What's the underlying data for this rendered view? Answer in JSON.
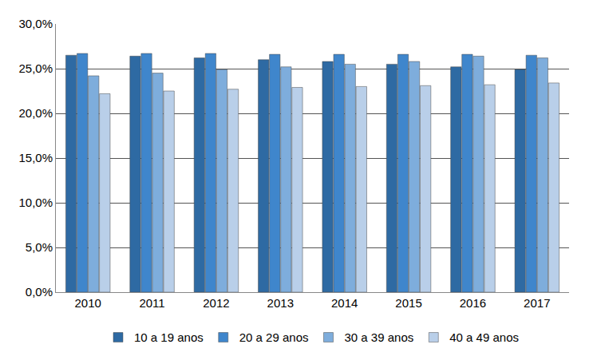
{
  "chart_data": {
    "type": "bar",
    "categories": [
      "2010",
      "2011",
      "2012",
      "2013",
      "2014",
      "2015",
      "2016",
      "2017"
    ],
    "series": [
      {
        "name": "10 a 19 anos",
        "color": "#2e6aa3",
        "values": [
          26.5,
          26.4,
          26.2,
          26.0,
          25.8,
          25.5,
          25.2,
          24.9
        ]
      },
      {
        "name": "20 a 29 anos",
        "color": "#3f86cc",
        "values": [
          26.7,
          26.7,
          26.7,
          26.6,
          26.6,
          26.6,
          26.6,
          26.5
        ]
      },
      {
        "name": "30 a 39 anos",
        "color": "#7eaddc",
        "values": [
          24.2,
          24.5,
          24.9,
          25.2,
          25.5,
          25.8,
          26.4,
          26.2
        ]
      },
      {
        "name": "40 a 49 anos",
        "color": "#b9cfe9",
        "values": [
          22.2,
          22.5,
          22.7,
          22.9,
          23.0,
          23.1,
          23.2,
          23.4
        ]
      }
    ],
    "ylim": [
      0,
      30
    ],
    "yticks": [
      {
        "value": 0,
        "label": "0,0%"
      },
      {
        "value": 5,
        "label": "5,0%"
      },
      {
        "value": 10,
        "label": "10,0%"
      },
      {
        "value": 15,
        "label": "15,0%"
      },
      {
        "value": 20,
        "label": "20,0%"
      },
      {
        "value": 25,
        "label": "25,0%"
      },
      {
        "value": 30,
        "label": "30,0%"
      }
    ],
    "grid": true,
    "legend": "bottom"
  }
}
